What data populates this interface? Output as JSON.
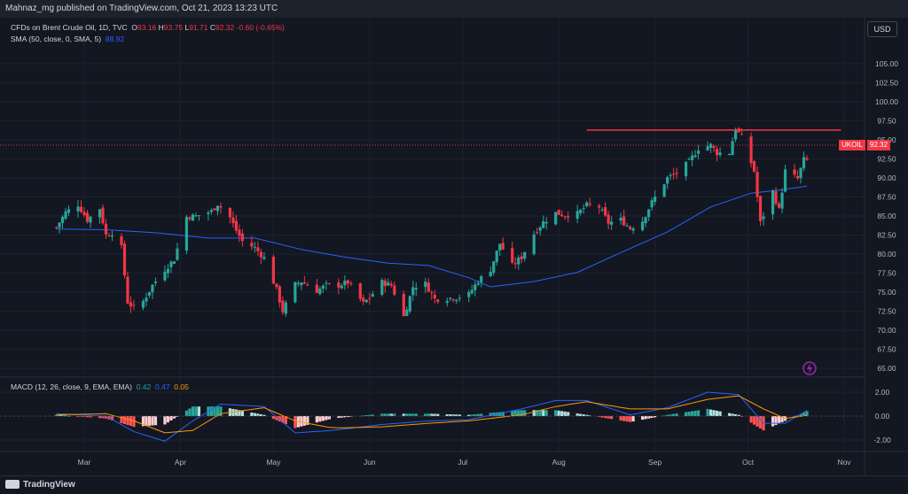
{
  "header": {
    "published_by": "Mahnaz_mg published on TradingView.com, Oct 21, 2023 13:23 UTC"
  },
  "legend": {
    "symbol": "CFDs on Brent Crude Oil, 1D, TVC",
    "open_label": "O",
    "open": "93.16",
    "high_label": "H",
    "high": "93.75",
    "low_label": "L",
    "low": "91.71",
    "close_label": "C",
    "close": "92.32",
    "change": "-0.60 (-0.65%)",
    "sma_label": "SMA (50, close, 0, SMA, 5)",
    "sma_value": "88.92",
    "macd_label": "MACD (12, 26, close, 9, EMA, EMA)",
    "macd_hist": "0.42",
    "macd_line": "0.47",
    "macd_signal": "0.05"
  },
  "price_axis": {
    "currency": "USD",
    "labels": [
      "105.00",
      "102.50",
      "100.00",
      "97.50",
      "95.00",
      "92.50",
      "90.00",
      "87.50",
      "85.00",
      "82.50",
      "80.00",
      "77.50",
      "75.00",
      "72.50",
      "70.00",
      "67.50",
      "65.00"
    ],
    "symbol_badge": "UKOIL",
    "price_badge": "92.32"
  },
  "macd_axis": {
    "labels": [
      "2.00",
      "0.00",
      "-2.00"
    ]
  },
  "time_axis": {
    "labels": [
      "Mar",
      "Apr",
      "May",
      "Jun",
      "Jul",
      "Aug",
      "Sep",
      "Oct",
      "Nov"
    ]
  },
  "footer": {
    "brand": "TradingView"
  },
  "colors": {
    "background": "#131722",
    "up": "#26a69a",
    "down": "#f23645",
    "sma": "#2962ff",
    "signal": "#ff9800",
    "resistance": "#f23645"
  },
  "chart_data": {
    "type": "candlestick",
    "title": "CFDs on Brent Crude Oil, 1D, TVC",
    "ylim": [
      65,
      105
    ],
    "x_ticks": [
      "Mar",
      "Apr",
      "May",
      "Jun",
      "Jul",
      "Aug",
      "Sep",
      "Oct",
      "Nov"
    ],
    "close_path": [
      {
        "date": "2023-02-20",
        "close": 83.5
      },
      {
        "date": "2023-02-23",
        "close": 85.5
      },
      {
        "date": "2023-02-27",
        "close": 86.5
      },
      {
        "date": "2023-03-02",
        "close": 84.5
      },
      {
        "date": "2023-03-06",
        "close": 86.0
      },
      {
        "date": "2023-03-08",
        "close": 82.5
      },
      {
        "date": "2023-03-10",
        "close": 82.8
      },
      {
        "date": "2023-03-13",
        "close": 80.8
      },
      {
        "date": "2023-03-15",
        "close": 73.7
      },
      {
        "date": "2023-03-17",
        "close": 72.9
      },
      {
        "date": "2023-03-20",
        "close": 73.8
      },
      {
        "date": "2023-03-23",
        "close": 75.9
      },
      {
        "date": "2023-03-27",
        "close": 78.0
      },
      {
        "date": "2023-03-30",
        "close": 79.3
      },
      {
        "date": "2023-04-03",
        "close": 84.9
      },
      {
        "date": "2023-04-06",
        "close": 85.0
      },
      {
        "date": "2023-04-11",
        "close": 85.6
      },
      {
        "date": "2023-04-13",
        "close": 86.6
      },
      {
        "date": "2023-04-17",
        "close": 84.8
      },
      {
        "date": "2023-04-19",
        "close": 83.1
      },
      {
        "date": "2023-04-21",
        "close": 81.7
      },
      {
        "date": "2023-04-25",
        "close": 80.8
      },
      {
        "date": "2023-04-28",
        "close": 79.5
      },
      {
        "date": "2023-05-02",
        "close": 75.3
      },
      {
        "date": "2023-05-04",
        "close": 72.5
      },
      {
        "date": "2023-05-08",
        "close": 76.0
      },
      {
        "date": "2023-05-10",
        "close": 76.4
      },
      {
        "date": "2023-05-15",
        "close": 75.2
      },
      {
        "date": "2023-05-18",
        "close": 75.9
      },
      {
        "date": "2023-05-22",
        "close": 75.9
      },
      {
        "date": "2023-05-25",
        "close": 76.3
      },
      {
        "date": "2023-05-30",
        "close": 73.5
      },
      {
        "date": "2023-06-01",
        "close": 74.3
      },
      {
        "date": "2023-06-05",
        "close": 76.3
      },
      {
        "date": "2023-06-08",
        "close": 75.9
      },
      {
        "date": "2023-06-12",
        "close": 71.8
      },
      {
        "date": "2023-06-15",
        "close": 75.7
      },
      {
        "date": "2023-06-19",
        "close": 76.1
      },
      {
        "date": "2023-06-22",
        "close": 74.1
      },
      {
        "date": "2023-06-26",
        "close": 74.2
      },
      {
        "date": "2023-06-29",
        "close": 74.3
      },
      {
        "date": "2023-07-03",
        "close": 74.7
      },
      {
        "date": "2023-07-06",
        "close": 76.5
      },
      {
        "date": "2023-07-10",
        "close": 78.0
      },
      {
        "date": "2023-07-13",
        "close": 81.4
      },
      {
        "date": "2023-07-17",
        "close": 78.5
      },
      {
        "date": "2023-07-20",
        "close": 79.6
      },
      {
        "date": "2023-07-24",
        "close": 82.7
      },
      {
        "date": "2023-07-27",
        "close": 84.2
      },
      {
        "date": "2023-07-31",
        "close": 85.4
      },
      {
        "date": "2023-08-03",
        "close": 85.1
      },
      {
        "date": "2023-08-07",
        "close": 85.3
      },
      {
        "date": "2023-08-10",
        "close": 86.4
      },
      {
        "date": "2023-08-14",
        "close": 86.2
      },
      {
        "date": "2023-08-17",
        "close": 84.1
      },
      {
        "date": "2023-08-21",
        "close": 84.5
      },
      {
        "date": "2023-08-24",
        "close": 83.4
      },
      {
        "date": "2023-08-28",
        "close": 84.4
      },
      {
        "date": "2023-08-31",
        "close": 86.8
      },
      {
        "date": "2023-09-05",
        "close": 90.0
      },
      {
        "date": "2023-09-08",
        "close": 90.6
      },
      {
        "date": "2023-09-12",
        "close": 92.1
      },
      {
        "date": "2023-09-15",
        "close": 93.9
      },
      {
        "date": "2023-09-19",
        "close": 94.3
      },
      {
        "date": "2023-09-21",
        "close": 93.3
      },
      {
        "date": "2023-09-25",
        "close": 93.3
      },
      {
        "date": "2023-09-27",
        "close": 96.5
      },
      {
        "date": "2023-09-29",
        "close": 95.3
      },
      {
        "date": "2023-10-03",
        "close": 90.9
      },
      {
        "date": "2023-10-05",
        "close": 84.1
      },
      {
        "date": "2023-10-09",
        "close": 88.2
      },
      {
        "date": "2023-10-11",
        "close": 85.8
      },
      {
        "date": "2023-10-13",
        "close": 90.9
      },
      {
        "date": "2023-10-17",
        "close": 89.9
      },
      {
        "date": "2023-10-19",
        "close": 92.4
      },
      {
        "date": "2023-10-20",
        "close": 92.3
      }
    ],
    "sma_path": [
      {
        "date": "2023-02-20",
        "value": 83.3
      },
      {
        "date": "2023-03-08",
        "value": 83.2
      },
      {
        "date": "2023-03-24",
        "value": 82.8
      },
      {
        "date": "2023-04-10",
        "value": 82.1
      },
      {
        "date": "2023-04-25",
        "value": 82.1
      },
      {
        "date": "2023-05-10",
        "value": 80.6
      },
      {
        "date": "2023-05-24",
        "value": 79.6
      },
      {
        "date": "2023-06-07",
        "value": 78.8
      },
      {
        "date": "2023-06-20",
        "value": 78.5
      },
      {
        "date": "2023-07-03",
        "value": 76.9
      },
      {
        "date": "2023-07-10",
        "value": 75.7
      },
      {
        "date": "2023-07-24",
        "value": 76.4
      },
      {
        "date": "2023-08-07",
        "value": 77.6
      },
      {
        "date": "2023-08-21",
        "value": 80.2
      },
      {
        "date": "2023-09-05",
        "value": 82.9
      },
      {
        "date": "2023-09-19",
        "value": 86.2
      },
      {
        "date": "2023-10-02",
        "value": 88.0
      },
      {
        "date": "2023-10-11",
        "value": 88.4
      },
      {
        "date": "2023-10-20",
        "value": 88.92
      }
    ],
    "resistance_level": 96.3,
    "resistance_start": "2023-08-10",
    "resistance_end": "2023-10-31",
    "macd_ylim": [
      -3,
      3
    ],
    "macd_path": [
      {
        "date": "2023-02-20",
        "macd": 0.2,
        "signal": 0.1
      },
      {
        "date": "2023-03-08",
        "macd": 0.0,
        "signal": 0.2
      },
      {
        "date": "2023-03-17",
        "macd": -1.3,
        "signal": -0.4
      },
      {
        "date": "2023-03-27",
        "macd": -2.1,
        "signal": -1.4
      },
      {
        "date": "2023-04-05",
        "macd": -0.4,
        "signal": -1.2
      },
      {
        "date": "2023-04-14",
        "macd": 1.0,
        "signal": 0.2
      },
      {
        "date": "2023-04-28",
        "macd": 0.8,
        "signal": 0.7
      },
      {
        "date": "2023-05-08",
        "macd": -1.4,
        "signal": -0.4
      },
      {
        "date": "2023-05-20",
        "macd": -1.2,
        "signal": -1.0
      },
      {
        "date": "2023-06-05",
        "macd": -0.7,
        "signal": -0.9
      },
      {
        "date": "2023-06-20",
        "macd": -0.4,
        "signal": -0.6
      },
      {
        "date": "2023-07-03",
        "macd": -0.3,
        "signal": -0.4
      },
      {
        "date": "2023-07-20",
        "macd": 0.6,
        "signal": 0.1
      },
      {
        "date": "2023-07-31",
        "macd": 1.3,
        "signal": 0.8
      },
      {
        "date": "2023-08-10",
        "macd": 1.3,
        "signal": 1.2
      },
      {
        "date": "2023-08-24",
        "macd": 0.1,
        "signal": 0.6
      },
      {
        "date": "2023-09-05",
        "macd": 0.7,
        "signal": 0.6
      },
      {
        "date": "2023-09-18",
        "macd": 2.0,
        "signal": 1.4
      },
      {
        "date": "2023-09-28",
        "macd": 1.8,
        "signal": 1.7
      },
      {
        "date": "2023-10-06",
        "macd": -0.6,
        "signal": 0.6
      },
      {
        "date": "2023-10-13",
        "macd": -0.6,
        "signal": -0.2
      },
      {
        "date": "2023-10-20",
        "macd": 0.47,
        "signal": 0.05
      }
    ]
  }
}
